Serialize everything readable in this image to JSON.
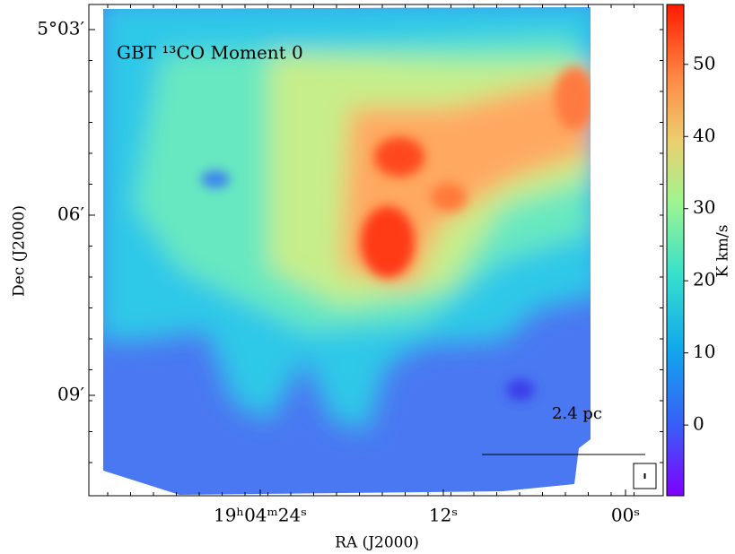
{
  "chart_data": {
    "type": "image",
    "title": "GBT ¹³CO Moment 0",
    "x_label": "RA (J2000)",
    "y_label": "Dec (J2000)",
    "x_tick_labels": [
      "19ʰ04ᵐ24ˢ",
      "12ˢ",
      "00ˢ"
    ],
    "y_tick_labels": [
      "5°03′",
      "06′",
      "09′"
    ],
    "colorbar": {
      "label": "K km/s",
      "ylim": [
        -9.8,
        58.3
      ],
      "yticks": [
        0,
        10,
        20,
        30,
        40,
        50
      ],
      "colormap": "rainbow"
    },
    "scale_bar_label": "2.4 pc"
  }
}
